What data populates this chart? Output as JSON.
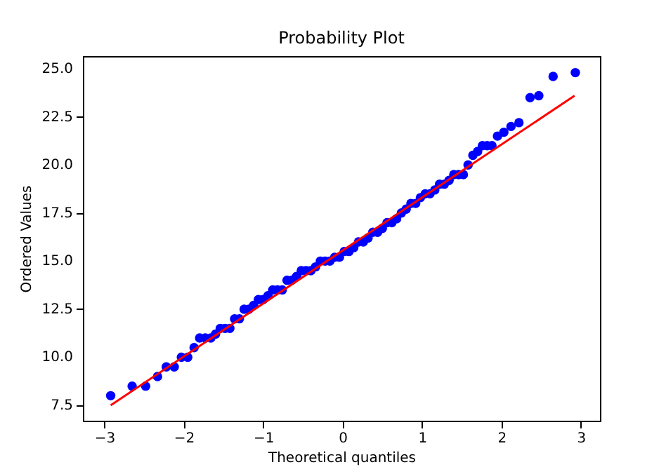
{
  "chart_data": {
    "type": "scatter",
    "title": "Probability Plot",
    "xlabel": "Theoretical quantiles",
    "ylabel": "Ordered Values",
    "xlim": [
      -3.27,
      3.24
    ],
    "ylim": [
      6.7,
      25.66
    ],
    "xticks": [
      {
        "value": -3,
        "label": "−3"
      },
      {
        "value": -2,
        "label": "−2"
      },
      {
        "value": -1,
        "label": "−1"
      },
      0,
      1,
      2,
      3
    ],
    "yticks": [
      7.5,
      {
        "value": 10,
        "label": "10.0"
      },
      12.5,
      {
        "value": 15,
        "label": "15.0"
      },
      17.5,
      {
        "value": 20,
        "label": "20.0"
      },
      22.5,
      {
        "value": 25,
        "label": "25.0"
      }
    ],
    "grid": false,
    "marker": "circle",
    "series": [
      {
        "type": "scatter",
        "color": "#0000ff",
        "x": [
          -2.92,
          -2.65,
          -2.48,
          -2.33,
          -2.22,
          -2.12,
          -2.03,
          -1.95,
          -1.87,
          -1.8,
          -1.73,
          -1.66,
          -1.6,
          -1.54,
          -1.48,
          -1.42,
          -1.36,
          -1.3,
          -1.24,
          -1.18,
          -1.12,
          -1.06,
          -1.0,
          -0.94,
          -0.88,
          -0.82,
          -0.76,
          -0.7,
          -0.64,
          -0.58,
          -0.52,
          -0.46,
          -0.4,
          -0.34,
          -0.28,
          -0.22,
          -0.16,
          -0.1,
          -0.04,
          0.02,
          0.08,
          0.14,
          0.2,
          0.26,
          0.32,
          0.38,
          0.44,
          0.5,
          0.56,
          0.62,
          0.68,
          0.74,
          0.8,
          0.86,
          0.92,
          0.98,
          1.04,
          1.1,
          1.16,
          1.22,
          1.28,
          1.34,
          1.4,
          1.46,
          1.52,
          1.58,
          1.64,
          1.7,
          1.76,
          1.82,
          1.88,
          1.95,
          2.03,
          2.12,
          2.22,
          2.36,
          2.47,
          2.65,
          2.93
        ],
        "values": [
          8.0,
          8.5,
          8.5,
          9.0,
          9.5,
          9.5,
          10.0,
          10.0,
          10.5,
          11.0,
          11.0,
          11.0,
          11.2,
          11.5,
          11.5,
          11.5,
          12.0,
          12.0,
          12.5,
          12.5,
          12.7,
          13.0,
          13.0,
          13.2,
          13.5,
          13.5,
          13.5,
          14.0,
          14.0,
          14.2,
          14.5,
          14.5,
          14.5,
          14.7,
          15.0,
          15.0,
          15.0,
          15.2,
          15.2,
          15.5,
          15.5,
          15.7,
          16.0,
          16.0,
          16.2,
          16.5,
          16.5,
          16.7,
          17.0,
          17.0,
          17.2,
          17.5,
          17.7,
          18.0,
          18.0,
          18.3,
          18.5,
          18.5,
          18.7,
          19.0,
          19.0,
          19.2,
          19.5,
          19.5,
          19.5,
          20.0,
          20.5,
          20.7,
          21.0,
          21.0,
          21.0,
          21.5,
          21.7,
          22.0,
          22.2,
          23.5,
          23.6,
          24.6,
          24.8
        ]
      },
      {
        "type": "line",
        "marker": "none",
        "color": "#ff0000",
        "x": [
          -2.92,
          2.92
        ],
        "values": [
          7.5,
          23.6
        ]
      }
    ]
  }
}
